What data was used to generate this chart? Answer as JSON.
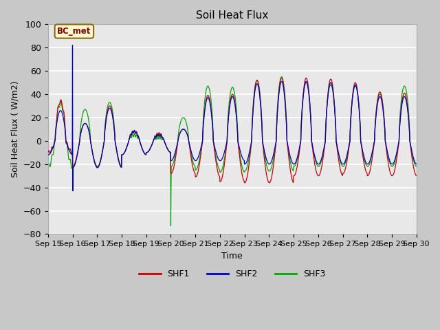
{
  "title": "Soil Heat Flux",
  "xlabel": "Time",
  "ylabel": "Soil Heat Flux ( W/m2)",
  "ylim": [
    -80,
    100
  ],
  "xlim": [
    0,
    360
  ],
  "fig_bg_color": "#c8c8c8",
  "plot_bg_color": "#e8e8e8",
  "series_colors": [
    "#cc0000",
    "#0000cc",
    "#00aa00"
  ],
  "series_names": [
    "SHF1",
    "SHF2",
    "SHF3"
  ],
  "annotation_text": "BC_met",
  "annotation_facecolor": "#FFFACD",
  "annotation_edgecolor": "#8B6914",
  "annotation_textcolor": "#8B0000",
  "xtick_labels": [
    "Sep 15",
    "Sep 16",
    "Sep 17",
    "Sep 18",
    "Sep 19",
    "Sep 20",
    "Sep 21",
    "Sep 22",
    "Sep 23",
    "Sep 24",
    "Sep 25",
    "Sep 26",
    "Sep 27",
    "Sep 28",
    "Sep 29",
    "Sep 30"
  ],
  "xtick_positions": [
    0,
    24,
    48,
    72,
    96,
    120,
    144,
    168,
    192,
    216,
    240,
    264,
    288,
    312,
    336,
    360
  ]
}
